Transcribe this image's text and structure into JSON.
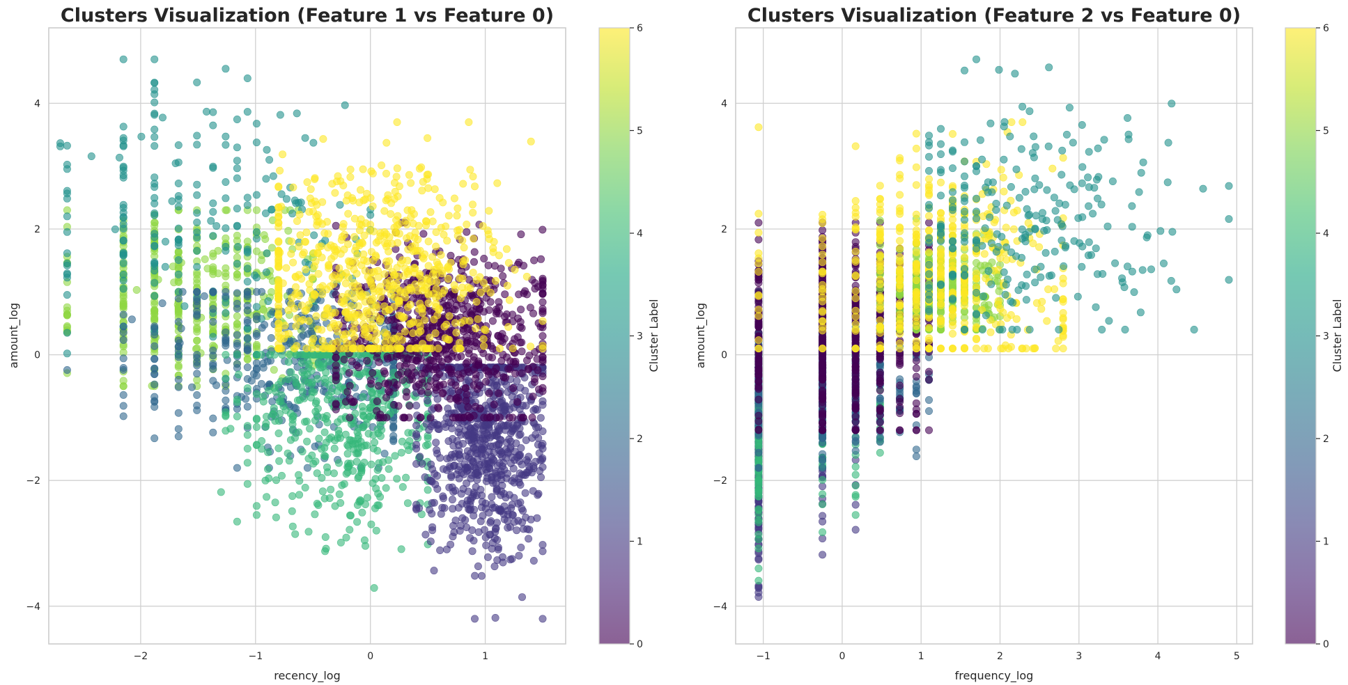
{
  "chart_data": [
    {
      "type": "scatter",
      "title": "Clusters Visualization (Feature 1 vs Feature 0)",
      "xlabel": "recency_log",
      "ylabel": "amount_log",
      "xlim": [
        -2.8,
        1.7
      ],
      "ylim": [
        -4.6,
        5.2
      ],
      "xticks": [
        -2,
        -1,
        0,
        1
      ],
      "yticks": [
        -4,
        -2,
        0,
        2,
        4
      ],
      "grid": true,
      "marker_alpha": 0.6,
      "colorbar": {
        "label": "Cluster Label",
        "range": [
          0,
          6
        ],
        "ticks": [
          0,
          1,
          2,
          3,
          4,
          5,
          6
        ],
        "colormap": "viridis"
      },
      "clusters": [
        {
          "label": 0,
          "approx_points": 750,
          "x_range": [
            -0.3,
            1.5
          ],
          "y_range": [
            -1.0,
            2.1
          ],
          "center": [
            0.6,
            0.3
          ]
        },
        {
          "label": 1,
          "approx_points": 750,
          "x_range": [
            0.4,
            1.5
          ],
          "y_range": [
            -4.2,
            -0.2
          ],
          "center": [
            1.0,
            -1.3
          ]
        },
        {
          "label": 2,
          "approx_points": 450,
          "x_range": [
            -2.7,
            0.2
          ],
          "y_range": [
            -1.8,
            1.0
          ],
          "center": [
            -0.6,
            -0.1
          ]
        },
        {
          "label": 3,
          "approx_points": 220,
          "x_range": [
            -2.7,
            0.0
          ],
          "y_range": [
            0.0,
            4.7
          ],
          "center": [
            -1.6,
            2.2
          ]
        },
        {
          "label": 4,
          "approx_points": 500,
          "x_range": [
            -1.3,
            0.5
          ],
          "y_range": [
            -3.8,
            0.0
          ],
          "center": [
            -0.2,
            -1.0
          ]
        },
        {
          "label": 5,
          "approx_points": 400,
          "x_range": [
            -2.7,
            -0.5
          ],
          "y_range": [
            -0.5,
            2.3
          ],
          "center": [
            -1.5,
            0.9
          ]
        },
        {
          "label": 6,
          "approx_points": 700,
          "x_range": [
            -0.8,
            1.5
          ],
          "y_range": [
            0.1,
            3.7
          ],
          "center": [
            0.0,
            1.2
          ]
        }
      ]
    },
    {
      "type": "scatter",
      "title": "Clusters Visualization (Feature 2 vs Feature 0)",
      "xlabel": "frequency_log",
      "ylabel": "amount_log",
      "xlim": [
        -1.35,
        5.2
      ],
      "ylim": [
        -4.6,
        5.2
      ],
      "xticks": [
        -1,
        0,
        1,
        2,
        3,
        4,
        5
      ],
      "yticks": [
        -4,
        -2,
        0,
        2,
        4
      ],
      "grid": true,
      "marker_alpha": 0.6,
      "colorbar": {
        "label": "Cluster Label",
        "range": [
          0,
          6
        ],
        "ticks": [
          0,
          1,
          2,
          3,
          4,
          5,
          6
        ],
        "colormap": "viridis"
      },
      "x_levels": [
        -1.06,
        -0.25,
        0.17,
        0.48,
        0.73,
        0.94,
        1.1,
        1.25,
        1.4,
        1.55,
        1.7
      ],
      "clusters": [
        {
          "label": 0,
          "x_range": [
            -1.06,
            1.1
          ],
          "y_range": [
            -1.2,
            2.1
          ],
          "center": [
            -0.4,
            0.3
          ]
        },
        {
          "label": 1,
          "x_range": [
            -1.06,
            0.2
          ],
          "y_range": [
            -4.2,
            -0.2
          ],
          "center": [
            -1.0,
            -1.3
          ]
        },
        {
          "label": 2,
          "x_range": [
            -1.06,
            1.2
          ],
          "y_range": [
            -1.8,
            1.0
          ],
          "center": [
            -0.5,
            -0.2
          ]
        },
        {
          "label": 3,
          "x_range": [
            1.0,
            4.9
          ],
          "y_range": [
            0.4,
            4.7
          ],
          "center": [
            2.2,
            2.0
          ]
        },
        {
          "label": 4,
          "x_range": [
            -1.06,
            0.5
          ],
          "y_range": [
            -3.7,
            0.0
          ],
          "center": [
            -1.0,
            -1.0
          ]
        },
        {
          "label": 5,
          "x_range": [
            0.2,
            2.0
          ],
          "y_range": [
            0.4,
            2.3
          ],
          "center": [
            1.2,
            1.1
          ]
        },
        {
          "label": 6,
          "x_range": [
            -1.06,
            2.8
          ],
          "y_range": [
            0.1,
            3.7
          ],
          "center": [
            1.1,
            1.3
          ]
        }
      ]
    }
  ]
}
